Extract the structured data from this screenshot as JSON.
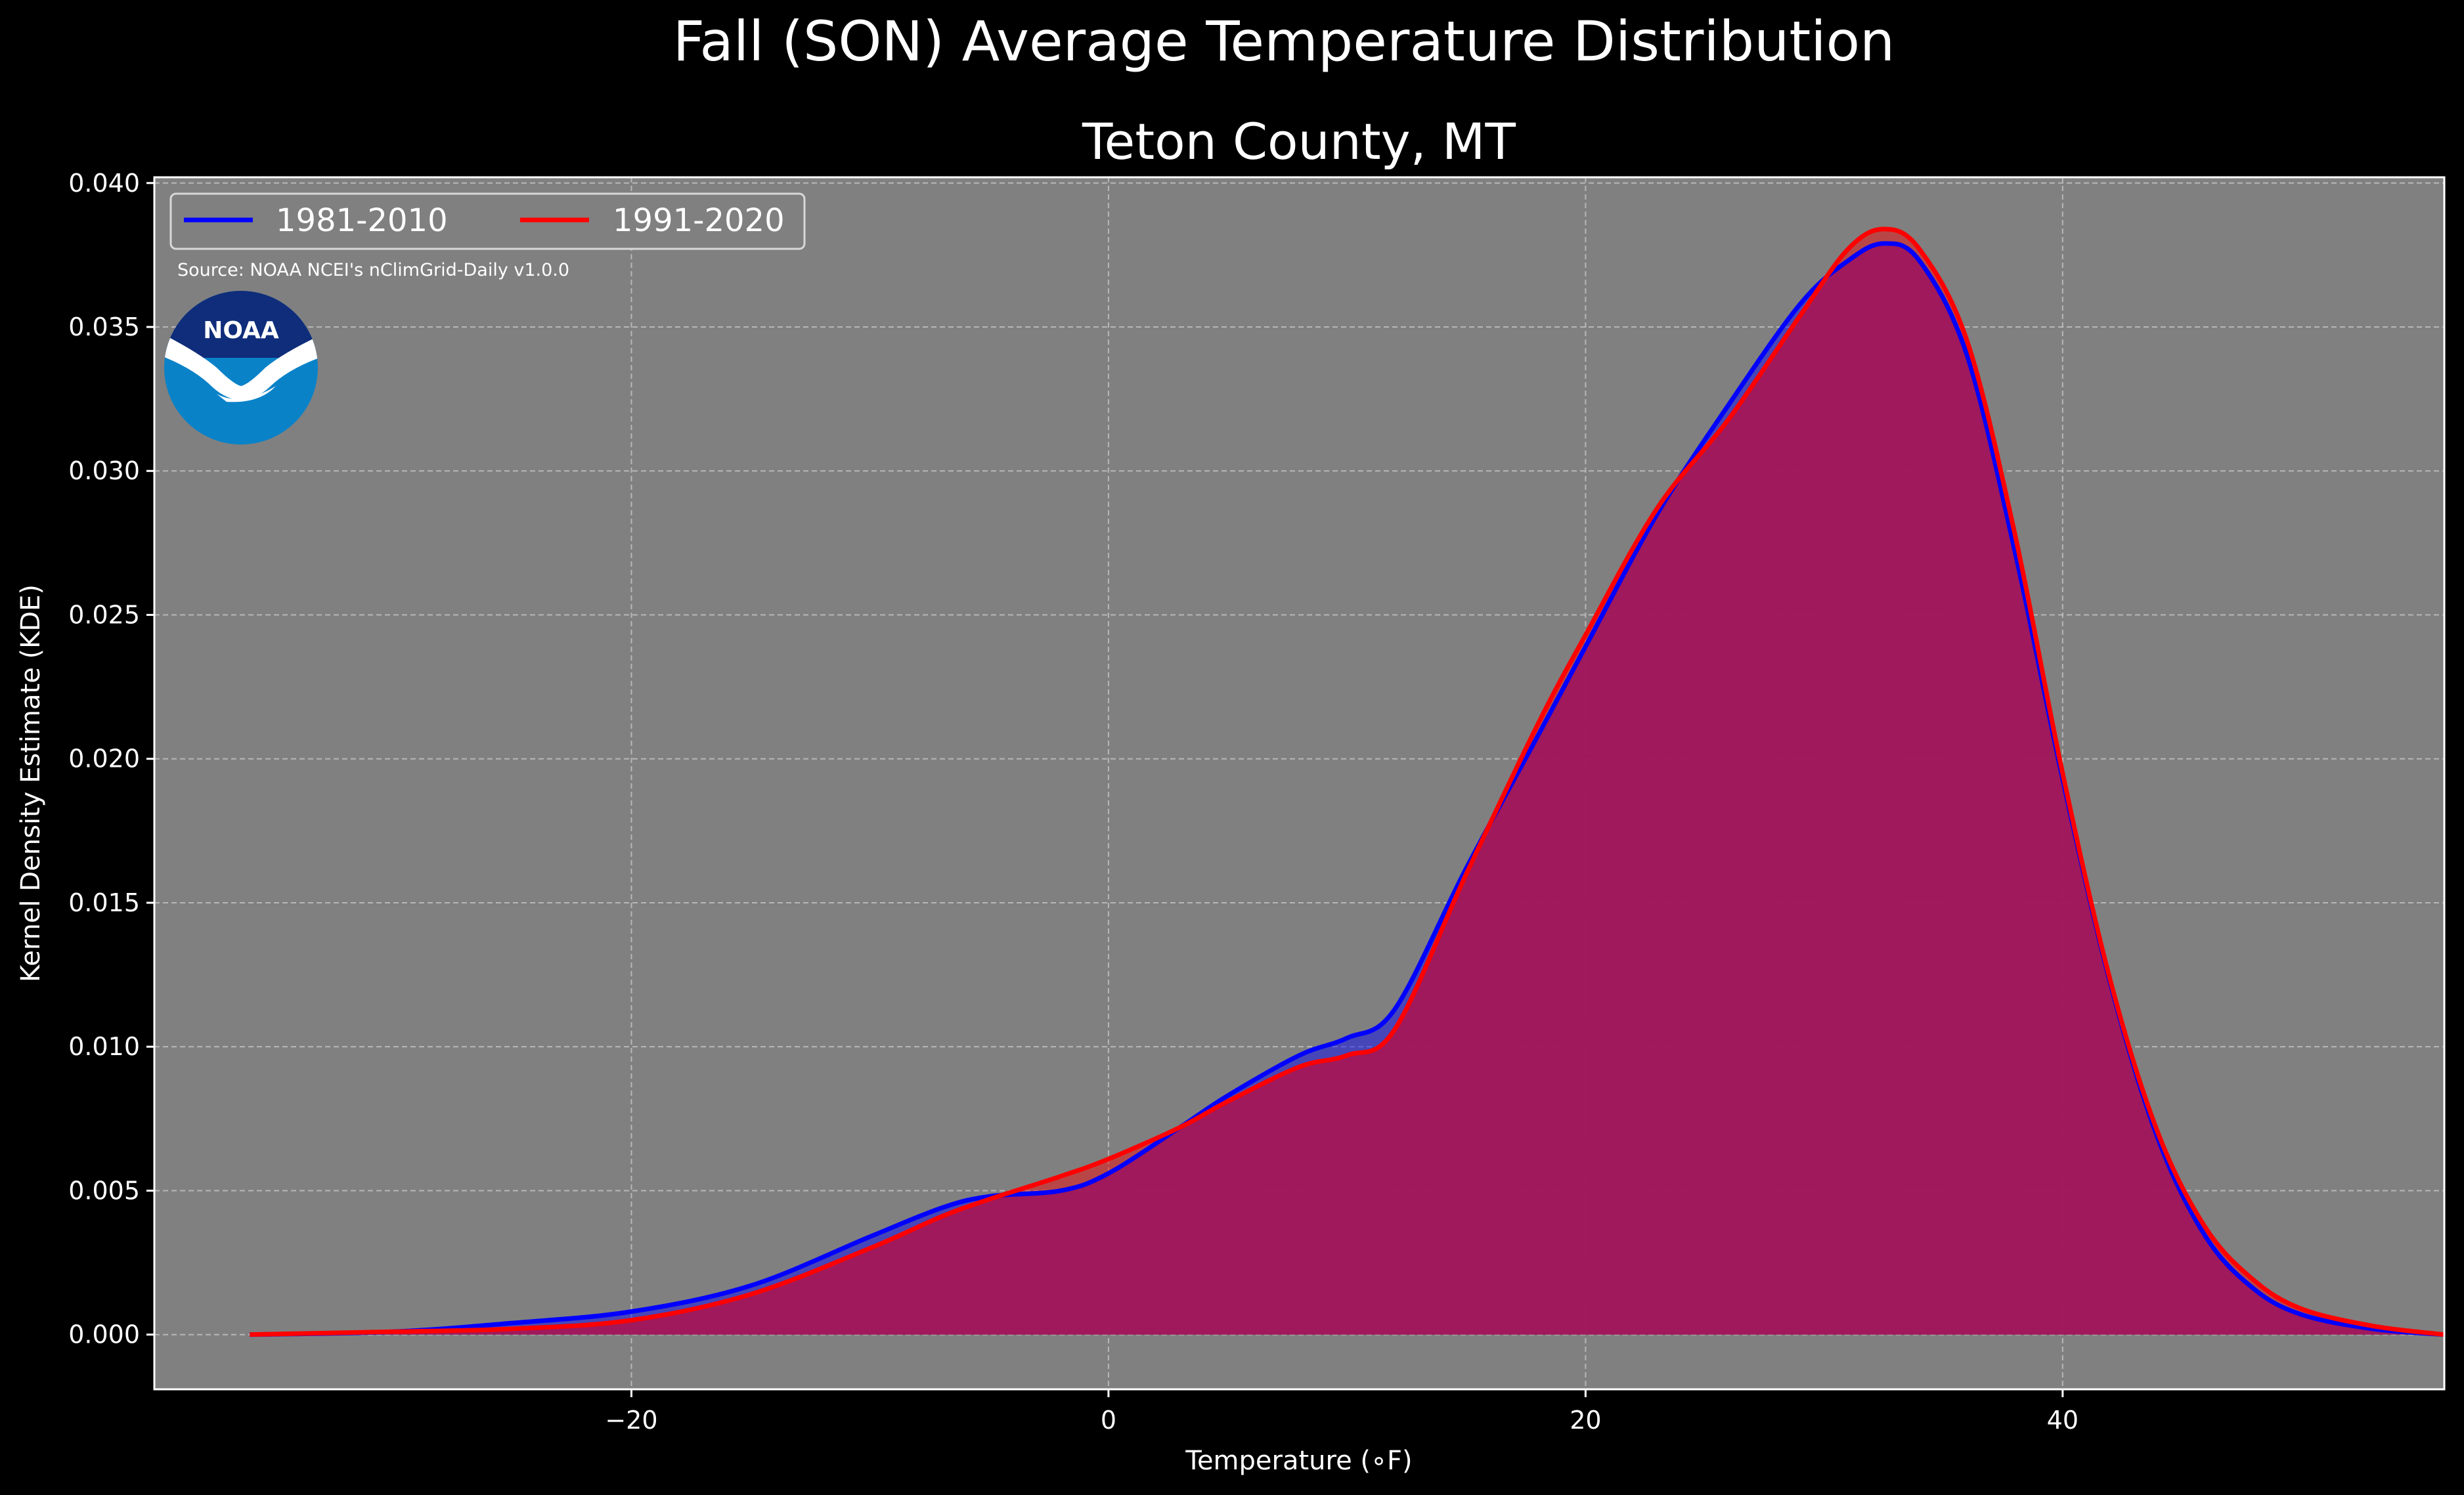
{
  "chart_data": {
    "type": "area",
    "suptitle": "Fall (SON) Average Temperature Distribution",
    "title": "Teton County, MT",
    "xlabel": "Temperature (∘F)",
    "ylabel": "Kernel Density Estimate (KDE)",
    "xlim": [
      -40,
      56
    ],
    "ylim": [
      -0.0019,
      0.0402
    ],
    "xticks": [
      "−20",
      "0",
      "20",
      "40"
    ],
    "xtick_values": [
      -20,
      0,
      20,
      40
    ],
    "yticks": [
      "0.000",
      "0.005",
      "0.010",
      "0.015",
      "0.020",
      "0.025",
      "0.030",
      "0.035",
      "0.040"
    ],
    "ytick_values": [
      0,
      0.005,
      0.01,
      0.015,
      0.02,
      0.025,
      0.03,
      0.035,
      0.04
    ],
    "grid": true,
    "legend_position": "top-left",
    "source": "Source: NOAA NCEI's nClimGrid-Daily v1.0.0",
    "logo_text": "NOAA",
    "colors": {
      "background": "#000000",
      "plot_bg": "#808080",
      "fill": "#a0175a"
    },
    "series": [
      {
        "name": "1981-2010",
        "color": "#0000ff",
        "x": [
          -36,
          -30,
          -25,
          -20,
          -15,
          -10,
          -7,
          -5,
          -2,
          0,
          3,
          5,
          8,
          10,
          12,
          15,
          18,
          20,
          23,
          26,
          29,
          31,
          32.5,
          34,
          36,
          38,
          40,
          42,
          44,
          46,
          48,
          50,
          53,
          56
        ],
        "y": [
          0,
          0.0001,
          0.0004,
          0.0008,
          0.0017,
          0.0034,
          0.0044,
          0.0048,
          0.005,
          0.0056,
          0.0072,
          0.0083,
          0.0097,
          0.0103,
          0.0113,
          0.0162,
          0.0208,
          0.0239,
          0.0285,
          0.0323,
          0.0358,
          0.0373,
          0.0379,
          0.0373,
          0.034,
          0.0272,
          0.0193,
          0.0122,
          0.0068,
          0.0034,
          0.0016,
          0.0007,
          0.0002,
          0
        ]
      },
      {
        "name": "1991-2020",
        "color": "#ff0000",
        "x": [
          -36,
          -30,
          -25,
          -20,
          -15,
          -10,
          -7,
          -5,
          -2,
          0,
          3,
          5,
          8,
          10,
          12,
          15,
          18,
          20,
          23,
          26,
          29,
          31,
          32.5,
          34,
          36,
          38,
          40,
          42,
          44,
          46,
          48,
          50,
          53,
          56
        ],
        "y": [
          0,
          0.0001,
          0.0002,
          0.0005,
          0.0014,
          0.003,
          0.0041,
          0.0047,
          0.0055,
          0.0061,
          0.0072,
          0.0081,
          0.0093,
          0.0097,
          0.0106,
          0.016,
          0.0212,
          0.0243,
          0.0287,
          0.0318,
          0.0354,
          0.0377,
          0.0384,
          0.0377,
          0.0345,
          0.0278,
          0.0195,
          0.0123,
          0.007,
          0.0037,
          0.0019,
          0.0009,
          0.0003,
          0
        ]
      }
    ]
  }
}
